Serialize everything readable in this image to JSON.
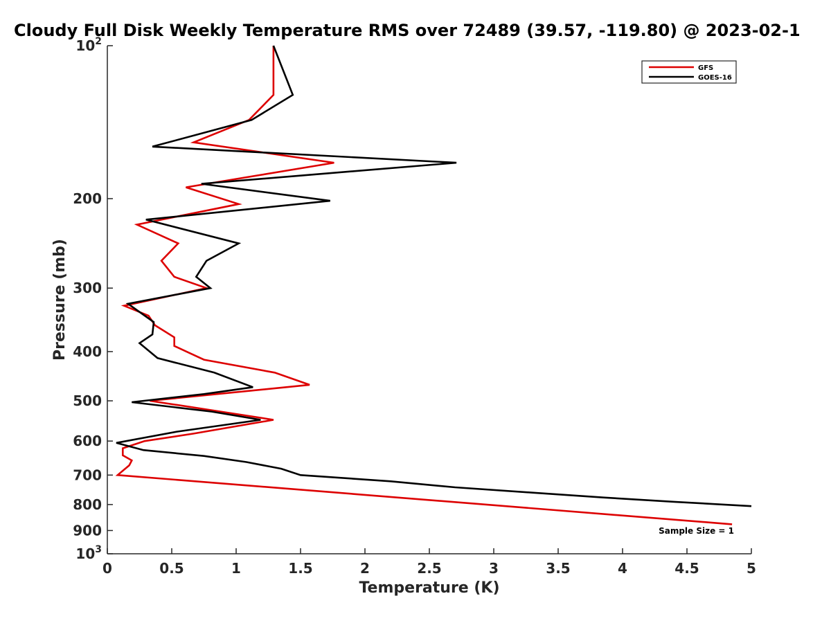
{
  "chart_data": {
    "type": "line",
    "title": "Cloudy Full Disk Weekly Temperature RMS over 72489 (39.57, -119.80) @ 2023-02-1",
    "xlabel": "Temperature (K)",
    "ylabel": "Pressure (mb)",
    "xlim": [
      0,
      5
    ],
    "ylim": [
      100,
      1000
    ],
    "y_scale": "log",
    "y_reversed": true,
    "xticks": [
      0,
      0.5,
      1,
      1.5,
      2,
      2.5,
      3,
      3.5,
      4,
      4.5,
      5
    ],
    "xtick_labels": [
      "0",
      "0.5",
      "1",
      "1.5",
      "2",
      "2.5",
      "3",
      "3.5",
      "4",
      "4.5",
      "5"
    ],
    "yticks": [
      100,
      200,
      300,
      400,
      500,
      600,
      700,
      800,
      900,
      1000
    ],
    "ytick_labels": [
      {
        "base": "10",
        "exp": "2"
      },
      {
        "base": "200",
        "exp": ""
      },
      {
        "base": "300",
        "exp": ""
      },
      {
        "base": "400",
        "exp": ""
      },
      {
        "base": "500",
        "exp": ""
      },
      {
        "base": "600",
        "exp": ""
      },
      {
        "base": "700",
        "exp": ""
      },
      {
        "base": "800",
        "exp": ""
      },
      {
        "base": "900",
        "exp": ""
      },
      {
        "base": "10",
        "exp": "3"
      }
    ],
    "legend": "top-right",
    "grid": false,
    "annotation": "Sample Size = 1",
    "series": [
      {
        "name": "GFS",
        "color": "#dd0000",
        "x": [
          1.29,
          1.29,
          1.1,
          0.67,
          1.76,
          0.61,
          1.02,
          0.23,
          0.55,
          0.42,
          0.52,
          0.77,
          0.13,
          0.32,
          0.37,
          0.52,
          0.52,
          0.75,
          1.3,
          1.57,
          0.33,
          0.88,
          1.29,
          0.67,
          0.29,
          0.12,
          0.12,
          0.19,
          0.17,
          0.08,
          4.85
        ],
        "y": [
          100,
          125,
          140,
          155,
          170,
          190,
          205,
          225,
          245,
          265,
          285,
          300,
          325,
          340,
          355,
          375,
          390,
          415,
          440,
          465,
          500,
          525,
          545,
          580,
          600,
          620,
          640,
          655,
          670,
          700,
          875
        ]
      },
      {
        "name": "GOES-16",
        "color": "#000000",
        "x": [
          1.29,
          1.44,
          1.12,
          0.35,
          2.71,
          0.73,
          1.73,
          0.3,
          1.02,
          0.77,
          0.69,
          0.8,
          0.16,
          0.36,
          0.35,
          0.25,
          0.39,
          0.83,
          1.13,
          0.75,
          0.19,
          0.81,
          1.19,
          0.54,
          0.07,
          0.28,
          0.75,
          1.08,
          1.35,
          1.5,
          2.2,
          2.7,
          3.3,
          3.85,
          4.4,
          5.0
        ],
        "y": [
          100,
          125,
          140,
          158,
          170,
          187,
          202,
          220,
          245,
          265,
          285,
          300,
          322,
          350,
          370,
          385,
          412,
          440,
          470,
          485,
          503,
          525,
          545,
          575,
          605,
          625,
          642,
          660,
          680,
          700,
          720,
          740,
          758,
          775,
          790,
          806
        ]
      }
    ]
  }
}
